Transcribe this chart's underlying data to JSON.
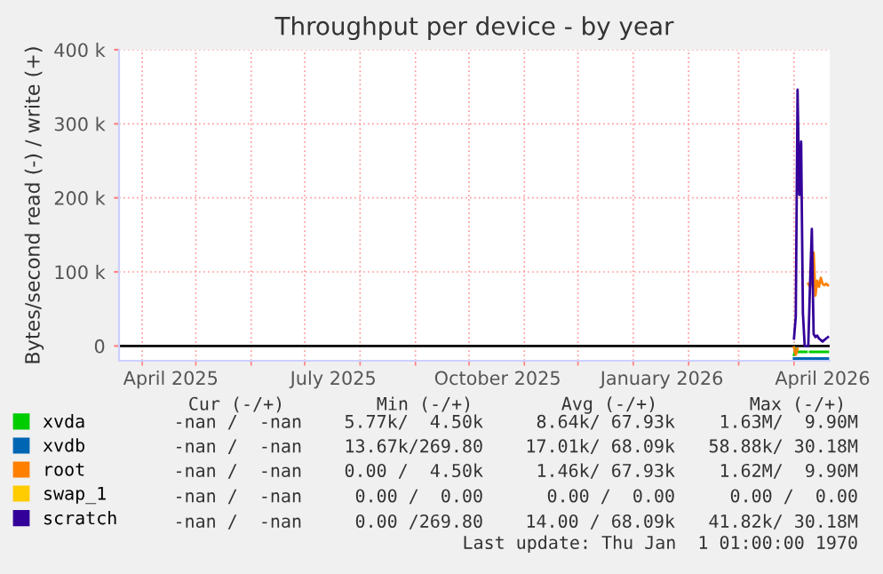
{
  "chart_data": {
    "type": "line",
    "title": "Throughput per device - by year",
    "ylabel": "Bytes/second read (-) / write (+)",
    "xlim": [
      "2025-03-19",
      "2026-04-21"
    ],
    "xticks": [
      {
        "value": "2025-04-01",
        "label": null
      },
      {
        "value": "2025-04-17",
        "label": "April 2025"
      },
      {
        "value": "2025-05-01",
        "label": null
      },
      {
        "value": "2025-06-01",
        "label": null
      },
      {
        "value": "2025-07-01",
        "label": null
      },
      {
        "value": "2025-07-17",
        "label": "July 2025"
      },
      {
        "value": "2025-08-01",
        "label": null
      },
      {
        "value": "2025-09-01",
        "label": null
      },
      {
        "value": "2025-10-01",
        "label": null
      },
      {
        "value": "2025-10-17",
        "label": "October 2025"
      },
      {
        "value": "2025-11-01",
        "label": null
      },
      {
        "value": "2025-12-01",
        "label": null
      },
      {
        "value": "2026-01-01",
        "label": null
      },
      {
        "value": "2026-01-17",
        "label": "January 2026"
      },
      {
        "value": "2026-02-01",
        "label": null
      },
      {
        "value": "2026-03-01",
        "label": null
      },
      {
        "value": "2026-04-01",
        "label": null
      },
      {
        "value": "2026-04-17",
        "label": "April 2026"
      }
    ],
    "ylim": [
      -20000,
      400000
    ],
    "yticks": [
      0,
      {
        "value": 100000,
        "label": "100 k"
      },
      {
        "value": 200000,
        "label": "200 k"
      },
      {
        "value": 300000,
        "label": "300 k"
      },
      {
        "value": 400000,
        "label": "400 k"
      }
    ],
    "grid": true,
    "legend": "bottom",
    "marker": "none",
    "line_style": "solid",
    "ref_lines": [
      {
        "axis": "y",
        "value": 0,
        "color": "#000000"
      }
    ],
    "series": [
      {
        "name": "xvda",
        "color": "#00cc00",
        "x": [
          "2026-04-01",
          "2026-04-02",
          "2026-04-03",
          "2026-04-04",
          "2026-04-05",
          "2026-04-06",
          "2026-04-07",
          "2026-04-08",
          "2026-04-09",
          "2026-04-10",
          "2026-04-11",
          "2026-04-12",
          "2026-04-13",
          "2026-04-14",
          "2026-04-15",
          "2026-04-16",
          "2026-04-17",
          "2026-04-18",
          "2026-04-19",
          "2026-04-20"
        ],
        "values": [
          -12000,
          -4000,
          -8000,
          -8000,
          -8000,
          -8000,
          -8000,
          -8000,
          null,
          -8000,
          -8000,
          -8000,
          -8000,
          -8000,
          -8000,
          -8000,
          -8000,
          -8000,
          -8000,
          -8000
        ]
      },
      {
        "name": "xvdb",
        "color": "#0066b3",
        "x": [
          "2026-04-01",
          "2026-04-02",
          "2026-04-03",
          "2026-04-04",
          "2026-04-05",
          "2026-04-06",
          "2026-04-07",
          "2026-04-08",
          "2026-04-09",
          "2026-04-10",
          "2026-04-11",
          "2026-04-12",
          "2026-04-13",
          "2026-04-14",
          "2026-04-15",
          "2026-04-16",
          "2026-04-17",
          "2026-04-18",
          "2026-04-19",
          "2026-04-20"
        ],
        "values": [
          -17000,
          -17000,
          -17000,
          -17000,
          -17000,
          -17000,
          -17000,
          -17000,
          -17000,
          -17000,
          -17000,
          -17000,
          -17000,
          -17000,
          -17000,
          -17000,
          -17000,
          -17000,
          -17000,
          -17000
        ]
      },
      {
        "name": "root",
        "color": "#ff8000",
        "x": [
          "2026-04-09",
          "2026-04-10",
          "2026-04-11",
          "2026-04-12",
          "2026-04-13",
          "2026-04-14",
          "2026-04-15",
          "2026-04-16",
          "2026-04-17",
          "2026-04-18",
          "2026-04-19",
          "2026-04-20"
        ],
        "values": [
          84000,
          80000,
          90000,
          126000,
          68000,
          88000,
          80000,
          92000,
          84000,
          82000,
          84000,
          82000
        ]
      },
      {
        "color": "#ff8000",
        "x": [
          "2026-04-01",
          "2026-04-02",
          "2026-04-03"
        ],
        "values": [
          -2000,
          -12000,
          -4000
        ]
      },
      {
        "name": "swap_1",
        "color": "#ffcc00"
      },
      {
        "name": "scratch",
        "color": "#330099",
        "x": [
          "2026-04-01",
          "2026-04-02",
          "2026-04-03",
          "2026-04-04",
          "2026-04-05",
          "2026-04-06",
          "2026-04-07",
          "2026-04-08",
          "2026-04-09",
          "2026-04-10",
          "2026-04-11",
          "2026-04-12",
          "2026-04-13",
          "2026-04-14",
          "2026-04-15",
          "2026-04-16",
          "2026-04-17",
          "2026-04-18",
          "2026-04-19",
          "2026-04-20"
        ],
        "values": [
          10000,
          40000,
          346000,
          204000,
          276000,
          44000,
          0,
          0,
          0,
          84000,
          158000,
          16000,
          12000,
          14000,
          10000,
          8000,
          6000,
          8000,
          10000,
          12000
        ]
      }
    ],
    "annotations": [
      "Cur (-/+)",
      "Min (-/+)",
      "Avg (-/+)",
      "Max (-/+)",
      "-nan /  -nan",
      " 5.77k/  4.50k",
      " 8.64k/ 67.93k",
      " 1.63M/  9.90M",
      "-nan /  -nan",
      "13.67k/269.80",
      "17.01k/ 68.09k",
      "58.88k/ 30.18M",
      "-nan /  -nan",
      " 0.00 /  4.50k",
      " 1.46k/ 67.93k",
      " 1.62M/  9.90M",
      "-nan /  -nan",
      " 0.00 /  0.00",
      " 0.00 /  0.00",
      " 0.00 /  0.00",
      "-nan /  -nan",
      " 0.00 /269.80",
      "14.00 / 68.09k",
      "41.82k/ 30.18M",
      "Last update: Thu Jan  1 01:00:00 1970"
    ]
  }
}
